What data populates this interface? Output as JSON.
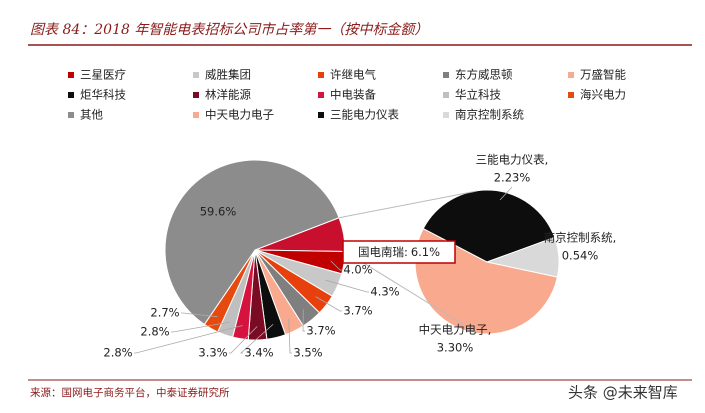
{
  "chart_data": {
    "type": "pie-of-pie",
    "title": "图表 84：2018 年智能电表招标公司市占率第一（按中标金额）",
    "source": "来源：国网电子商务平台，中泰证券研究所",
    "watermark": "头条 @未来智库",
    "pie": {
      "categories": [
        "国电南瑞:",
        "三星医疗",
        "威胜集团",
        "许继电气",
        "东方威思顿",
        "万盛智能",
        "炬华科技",
        "林洋能源",
        "中电装备",
        "华立科技",
        "海兴电力",
        "其他"
      ],
      "values": [
        6.1,
        4.0,
        4.3,
        3.7,
        3.7,
        3.5,
        3.4,
        3.3,
        2.8,
        2.8,
        2.7,
        59.6
      ],
      "value_labels": [
        "6.1%",
        "4.0%",
        "4.3%",
        "3.7%",
        "3.7%",
        "3.5%",
        "3.4%",
        "3.3%",
        "2.8%",
        "2.8%",
        "2.7%",
        "59.6%"
      ],
      "colors": [
        "#C8102E",
        "#C00000",
        "#C8C8C8",
        "#E8400C",
        "#7F7F7F",
        "#F8A98E",
        "#0D0D0D",
        "#7B0B24",
        "#D6133F",
        "#BFBFBF",
        "#E64A0E",
        "#8C8C8C"
      ]
    },
    "sub_pie": {
      "categories": [
        "中天电力电子",
        "三能电力仪表",
        "南京控制系统"
      ],
      "label_names": [
        "中天电力电子,",
        "三能电力仪表,",
        "南京控制系统,"
      ],
      "values": [
        3.3,
        2.23,
        0.54
      ],
      "value_labels": [
        "3.30%",
        "2.23%",
        "0.54%"
      ],
      "colors": [
        "#F8A98E",
        "#0D0D0D",
        "#D9D9D9"
      ]
    }
  }
}
